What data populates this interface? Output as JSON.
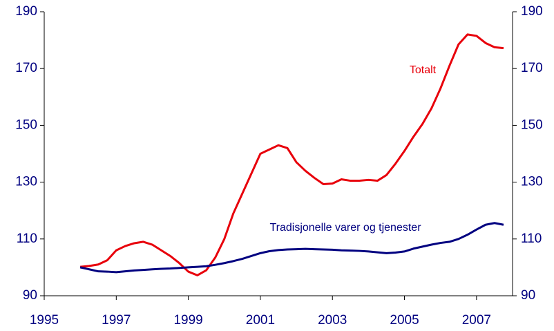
{
  "chart_data": {
    "type": "line",
    "x": [
      1996,
      1996.25,
      1996.5,
      1996.75,
      1997,
      1997.25,
      1997.5,
      1997.75,
      1998,
      1998.25,
      1998.5,
      1998.75,
      1999,
      1999.25,
      1999.5,
      1999.75,
      2000,
      2000.25,
      2000.5,
      2000.75,
      2001,
      2001.25,
      2001.5,
      2001.75,
      2002,
      2002.25,
      2002.5,
      2002.75,
      2003,
      2003.25,
      2003.5,
      2003.75,
      2004,
      2004.25,
      2004.5,
      2004.75,
      2005,
      2005.25,
      2005.5,
      2005.75,
      2006,
      2006.25,
      2006.5,
      2006.75,
      2007,
      2007.25,
      2007.5,
      2007.75
    ],
    "series": [
      {
        "name": "Totalt",
        "color": "#e8000b",
        "values": [
          100.2,
          100.5,
          101,
          102.5,
          106,
          107.5,
          108.5,
          109,
          108,
          106,
          104,
          101.5,
          98.5,
          97.2,
          99,
          103.5,
          110,
          119,
          126,
          133,
          140,
          141.5,
          143,
          142,
          137,
          134,
          131.5,
          129.3,
          129.5,
          131,
          130.5,
          130.5,
          130.8,
          130.5,
          132.5,
          136.5,
          141,
          146,
          150.5,
          156,
          163,
          171,
          178.5,
          182,
          181.5,
          179,
          177.5,
          177.2
        ]
      },
      {
        "name": "Tradisjonelle varer og tjenester",
        "color": "#000080",
        "values": [
          100,
          99.3,
          98.6,
          98.5,
          98.3,
          98.6,
          98.9,
          99.1,
          99.3,
          99.5,
          99.6,
          99.8,
          100,
          100.2,
          100.4,
          100.9,
          101.5,
          102.2,
          103,
          104,
          105,
          105.7,
          106.1,
          106.3,
          106.4,
          106.5,
          106.4,
          106.3,
          106.2,
          106,
          105.9,
          105.8,
          105.6,
          105.3,
          105,
          105.2,
          105.6,
          106.6,
          107.3,
          108,
          108.6,
          109,
          110,
          111.5,
          113.3,
          115,
          115.6,
          115
        ]
      }
    ],
    "xlim": [
      1995,
      2008
    ],
    "xticks": [
      1995,
      1997,
      1999,
      2001,
      2003,
      2005,
      2007
    ],
    "ylim": [
      90,
      190
    ],
    "yticks": [
      90,
      110,
      130,
      150,
      170,
      190
    ],
    "y2lim": [
      90,
      190
    ],
    "y2ticks": [
      90,
      110,
      130,
      150,
      170,
      190
    ],
    "grid": false
  }
}
